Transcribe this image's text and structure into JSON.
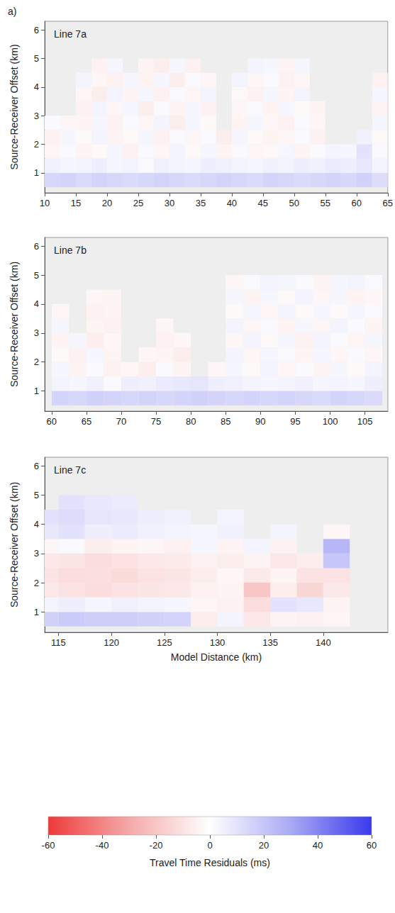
{
  "figure_label": "a)",
  "colorbar": {
    "label": "Travel Time Residuals (ms)",
    "range": [
      -60,
      60
    ],
    "ticks": [
      -60,
      -40,
      -20,
      0,
      20,
      40,
      60
    ]
  },
  "chart_data": [
    {
      "type": "heatmap",
      "title": "Line 7a",
      "ylabel": "Source-Receiver Offset (km)",
      "xlim": [
        10,
        65
      ],
      "xticks": [
        10,
        15,
        20,
        25,
        30,
        35,
        40,
        45,
        50,
        55,
        60,
        65
      ],
      "ylim": [
        0.3,
        6.3
      ],
      "yticks": [
        1,
        2,
        3,
        4,
        5,
        6
      ],
      "x": [
        11.25,
        13.75,
        16.25,
        18.75,
        21.25,
        23.75,
        26.25,
        28.75,
        31.25,
        33.75,
        36.25,
        38.75,
        41.25,
        43.75,
        46.25,
        48.75,
        51.25,
        53.75,
        56.25,
        58.75,
        61.25,
        63.75
      ],
      "y": [
        0.75,
        1.25,
        1.75,
        2.25,
        2.75,
        3.25,
        3.75,
        4.25,
        4.75
      ],
      "cells": [
        [
          14,
          15,
          13,
          15,
          14,
          13,
          14,
          15,
          14,
          13,
          14,
          15,
          14,
          13,
          15,
          14,
          13,
          14,
          15,
          14,
          16,
          12
        ],
        [
          5,
          3,
          4,
          6,
          3,
          4,
          2,
          5,
          4,
          3,
          6,
          5,
          4,
          3,
          5,
          4,
          6,
          5,
          7,
          6,
          8,
          4
        ],
        [
          -3,
          2,
          -4,
          -2,
          3,
          -5,
          2,
          -3,
          4,
          -2,
          3,
          -4,
          2,
          -3,
          -2,
          3,
          -4,
          2,
          4,
          3,
          10,
          2
        ],
        [
          -5,
          3,
          -2,
          4,
          -4,
          -2,
          3,
          -5,
          2,
          -3,
          2,
          -6,
          3,
          -2,
          -4,
          -3,
          2,
          -5,
          null,
          null,
          5,
          -2
        ],
        [
          2,
          -3,
          -4,
          3,
          -5,
          2,
          -3,
          4,
          -6,
          3,
          -2,
          null,
          -4,
          3,
          -3,
          -5,
          2,
          -3,
          null,
          null,
          null,
          3
        ],
        [
          null,
          null,
          -5,
          4,
          -3,
          3,
          -6,
          2,
          -4,
          3,
          -5,
          null,
          -3,
          2,
          -4,
          3,
          -2,
          -4,
          null,
          null,
          null,
          -4
        ],
        [
          null,
          null,
          -3,
          -6,
          4,
          -4,
          3,
          -5,
          2,
          -3,
          4,
          null,
          -2,
          -5,
          3,
          -4,
          4,
          null,
          null,
          null,
          null,
          3
        ],
        [
          null,
          null,
          4,
          -3,
          -5,
          3,
          -4,
          3,
          -6,
          2,
          -3,
          null,
          4,
          -3,
          2,
          -5,
          -3,
          null,
          null,
          null,
          null,
          -5
        ],
        [
          null,
          null,
          null,
          -5,
          3,
          null,
          -4,
          -6,
          3,
          -5,
          null,
          null,
          null,
          4,
          3,
          -4,
          3,
          null,
          null,
          null,
          null,
          null
        ]
      ]
    },
    {
      "type": "heatmap",
      "title": "Line 7b",
      "ylabel": "Source-Receiver Offset (km)",
      "xlim": [
        59,
        108.3
      ],
      "xticks": [
        60,
        65,
        70,
        75,
        80,
        85,
        90,
        95,
        100,
        105
      ],
      "ylim": [
        0.3,
        6.3
      ],
      "yticks": [
        1,
        2,
        3,
        4,
        5,
        6
      ],
      "x": [
        61.25,
        63.75,
        66.25,
        68.75,
        71.25,
        73.75,
        76.25,
        78.75,
        81.25,
        83.75,
        86.25,
        88.75,
        91.25,
        93.75,
        96.25,
        98.75,
        101.25,
        103.75,
        106.25
      ],
      "y": [
        0.75,
        1.25,
        1.75,
        2.25,
        2.75,
        3.25,
        3.75,
        4.25,
        4.75
      ],
      "cells": [
        [
          15,
          14,
          16,
          15,
          14,
          15,
          14,
          15,
          16,
          15,
          14,
          15,
          14,
          15,
          14,
          13,
          15,
          14,
          13
        ],
        [
          4,
          3,
          5,
          2,
          6,
          5,
          7,
          8,
          9,
          6,
          5,
          4,
          3,
          4,
          5,
          3,
          4,
          3,
          6
        ],
        [
          3,
          -4,
          2,
          -5,
          -3,
          -6,
          2,
          -4,
          null,
          -3,
          3,
          -2,
          4,
          -3,
          2,
          -4,
          3,
          -2,
          4
        ],
        [
          -2,
          -5,
          3,
          -4,
          null,
          -3,
          -4,
          -6,
          null,
          null,
          4,
          -3,
          3,
          2,
          -4,
          3,
          -3,
          2,
          -3
        ],
        [
          -4,
          3,
          -6,
          -3,
          null,
          null,
          -5,
          -3,
          null,
          null,
          -3,
          4,
          -2,
          3,
          -5,
          4,
          2,
          -3,
          3
        ],
        [
          3,
          null,
          -4,
          -5,
          null,
          null,
          -3,
          null,
          null,
          null,
          4,
          -3,
          2,
          -4,
          3,
          -3,
          4,
          2,
          -4
        ],
        [
          -3,
          null,
          -5,
          -4,
          null,
          null,
          null,
          null,
          null,
          null,
          -2,
          3,
          -3,
          4,
          -2,
          3,
          -2,
          3,
          2
        ],
        [
          null,
          null,
          -3,
          -4,
          null,
          null,
          null,
          null,
          null,
          null,
          3,
          -4,
          3,
          -2,
          4,
          -3,
          3,
          -4,
          -3
        ],
        [
          null,
          null,
          null,
          null,
          null,
          null,
          null,
          null,
          null,
          null,
          -3,
          2,
          4,
          3,
          2,
          -4,
          3,
          4,
          2
        ]
      ]
    },
    {
      "type": "heatmap",
      "title": "Line 7c",
      "xlabel": "Model Distance (km)",
      "ylabel": "Source-Receiver Offset (km)",
      "xlim": [
        113.7,
        146.1
      ],
      "xticks": [
        115,
        120,
        125,
        130,
        135,
        140
      ],
      "ylim": [
        0.3,
        6.3
      ],
      "yticks": [
        1,
        2,
        3,
        4,
        5,
        6
      ],
      "x": [
        113.75,
        116.25,
        118.75,
        121.25,
        123.75,
        126.25,
        128.75,
        131.25,
        133.75,
        136.25,
        138.75,
        141.25
      ],
      "y": [
        0.75,
        1.25,
        1.75,
        2.25,
        2.75,
        3.25,
        3.75,
        4.25,
        4.75
      ],
      "cells": [
        [
          16,
          18,
          17,
          17,
          16,
          15,
          -6,
          4,
          -8,
          -4,
          -5,
          -3
        ],
        [
          4,
          6,
          3,
          5,
          4,
          3,
          -3,
          -5,
          -12,
          10,
          8,
          -4
        ],
        [
          -8,
          -10,
          -12,
          -10,
          -9,
          -8,
          -5,
          -4,
          -20,
          -6,
          -14,
          -8
        ],
        [
          -10,
          -12,
          -11,
          -13,
          -10,
          -9,
          -6,
          -3,
          -7,
          -4,
          -10,
          -10
        ],
        [
          -8,
          -9,
          -12,
          -10,
          -8,
          -7,
          -5,
          -6,
          -4,
          -8,
          -6,
          20
        ],
        [
          -3,
          2,
          -6,
          -4,
          -3,
          -5,
          3,
          -4,
          4,
          -5,
          null,
          25
        ],
        [
          8,
          10,
          6,
          7,
          5,
          4,
          3,
          5,
          null,
          4,
          null,
          -3
        ],
        [
          10,
          12,
          9,
          8,
          6,
          5,
          null,
          4,
          null,
          null,
          null,
          null
        ],
        [
          null,
          10,
          8,
          7,
          null,
          null,
          null,
          null,
          null,
          null,
          null,
          null
        ]
      ]
    }
  ]
}
